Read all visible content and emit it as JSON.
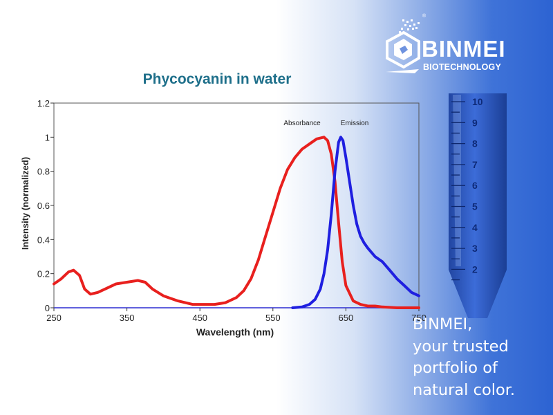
{
  "brand": {
    "name": "BINMEI",
    "subtitle": "BIOTECHNOLOGY",
    "registered": "®"
  },
  "slogan": [
    "BINMEI,",
    "your trusted",
    "portfolio of",
    "natural color."
  ],
  "tube": {
    "scale_labels": [
      "10",
      "9",
      "8",
      "7",
      "6",
      "5",
      "4",
      "3",
      "2"
    ]
  },
  "colors": {
    "absorbance": "#e8201e",
    "emission": "#1f1fe0",
    "title": "#1e6f8a",
    "background_blue": "#2d63d2"
  },
  "chart_data": {
    "type": "line",
    "title": "Phycocyanin in water",
    "xlabel": "Wavelength (nm)",
    "ylabel": "Intensity (normalized)",
    "xlim": [
      250,
      750
    ],
    "ylim": [
      0,
      1.2
    ],
    "xticks": [
      250,
      350,
      450,
      550,
      650,
      750
    ],
    "xtick_labels": [
      "250",
      "350",
      "450",
      "550",
      "650",
      "750"
    ],
    "yticks": [
      0,
      0.2,
      0.4,
      0.6,
      0.8,
      1,
      1.2
    ],
    "ytick_labels": [
      "0",
      "0.2",
      "0.4",
      "0.6",
      "0.8",
      "1",
      "1.2"
    ],
    "grid": false,
    "annotations": [
      {
        "text": "Absorbance",
        "x": 590,
        "y": 1.07
      },
      {
        "text": "Emission",
        "x": 662,
        "y": 1.07
      }
    ],
    "series": [
      {
        "name": "Absorbance",
        "x": [
          250,
          260,
          270,
          277,
          285,
          292,
          300,
          310,
          320,
          335,
          350,
          365,
          375,
          385,
          400,
          420,
          440,
          455,
          470,
          485,
          500,
          510,
          520,
          530,
          540,
          550,
          560,
          570,
          580,
          590,
          600,
          610,
          620,
          625,
          630,
          635,
          640,
          645,
          650,
          660,
          670,
          680,
          690,
          700,
          720,
          740,
          750
        ],
        "y": [
          0.14,
          0.17,
          0.21,
          0.22,
          0.19,
          0.11,
          0.08,
          0.09,
          0.11,
          0.14,
          0.15,
          0.16,
          0.15,
          0.11,
          0.07,
          0.04,
          0.02,
          0.02,
          0.02,
          0.03,
          0.06,
          0.1,
          0.17,
          0.28,
          0.42,
          0.56,
          0.7,
          0.81,
          0.88,
          0.93,
          0.96,
          0.99,
          1.0,
          0.98,
          0.9,
          0.74,
          0.5,
          0.27,
          0.13,
          0.04,
          0.02,
          0.01,
          0.01,
          0.005,
          0.0,
          0.0,
          0.0
        ]
      },
      {
        "name": "Emission",
        "x": [
          577,
          590,
          600,
          608,
          615,
          620,
          625,
          630,
          635,
          640,
          643,
          646,
          650,
          655,
          660,
          665,
          670,
          675,
          680,
          690,
          700,
          710,
          720,
          730,
          740,
          750
        ],
        "y": [
          0.0,
          0.005,
          0.02,
          0.05,
          0.11,
          0.2,
          0.34,
          0.55,
          0.8,
          0.97,
          1.0,
          0.98,
          0.88,
          0.74,
          0.6,
          0.49,
          0.42,
          0.38,
          0.35,
          0.3,
          0.27,
          0.22,
          0.17,
          0.13,
          0.09,
          0.07
        ]
      }
    ]
  }
}
